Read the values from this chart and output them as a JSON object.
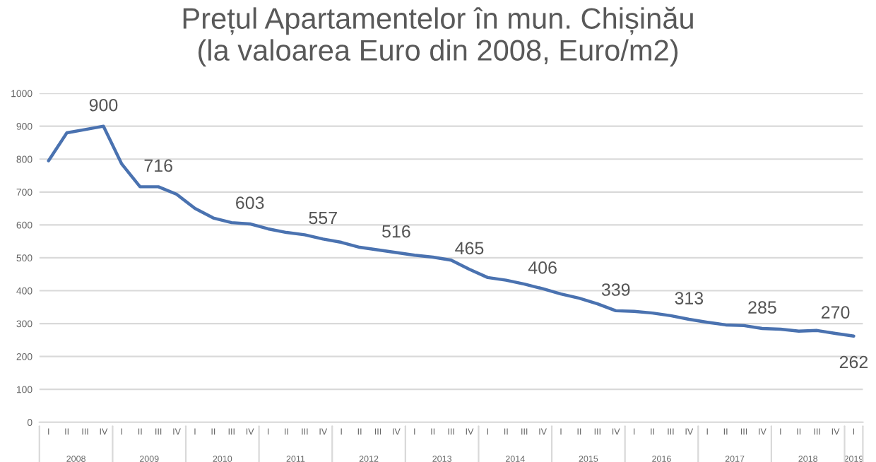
{
  "chart_data": {
    "type": "line",
    "title": "Prețul Apartamentelor în mun. Chișinău\n(la valoarea Euro din 2008, Euro/m2)",
    "categories": [
      "I",
      "II",
      "III",
      "IV",
      "I",
      "II",
      "III",
      "IV",
      "I",
      "II",
      "III",
      "IV",
      "I",
      "II",
      "III",
      "IV",
      "I",
      "II",
      "III",
      "IV",
      "I",
      "II",
      "III",
      "IV",
      "I",
      "II",
      "III",
      "IV",
      "I",
      "II",
      "III",
      "IV",
      "I",
      "II",
      "III",
      "IV",
      "I",
      "II",
      "III",
      "IV",
      "I",
      "II",
      "III",
      "IV",
      "I"
    ],
    "series": [
      {
        "color": "#4a72b0",
        "values": [
          795,
          880,
          890,
          900,
          785,
          716,
          716,
          693,
          650,
          621,
          607,
          603,
          588,
          577,
          570,
          557,
          547,
          532,
          524,
          516,
          508,
          502,
          493,
          465,
          440,
          432,
          420,
          406,
          390,
          377,
          360,
          339,
          337,
          332,
          324,
          313,
          304,
          296,
          294,
          285,
          283,
          277,
          279,
          270,
          262
        ],
        "value_labels": [
          null,
          null,
          null,
          "900",
          null,
          null,
          "716",
          null,
          null,
          null,
          null,
          "603",
          null,
          null,
          null,
          "557",
          null,
          null,
          null,
          "516",
          null,
          null,
          null,
          "465",
          null,
          null,
          null,
          "406",
          null,
          null,
          null,
          "339",
          null,
          null,
          null,
          "313",
          null,
          null,
          null,
          "285",
          null,
          null,
          null,
          "270",
          "262"
        ]
      }
    ],
    "annotations": [
      "2008",
      "2009",
      "2010",
      "2011",
      "2012",
      "2013",
      "2014",
      "2015",
      "2016",
      "2017",
      "2018",
      "2019"
    ],
    "ylim": [
      0,
      1000
    ],
    "yticks": [
      0,
      100,
      200,
      300,
      400,
      500,
      600,
      700,
      800,
      900,
      1000
    ],
    "grid": "y",
    "legend": false,
    "marker": "none",
    "line_style": "solid"
  }
}
